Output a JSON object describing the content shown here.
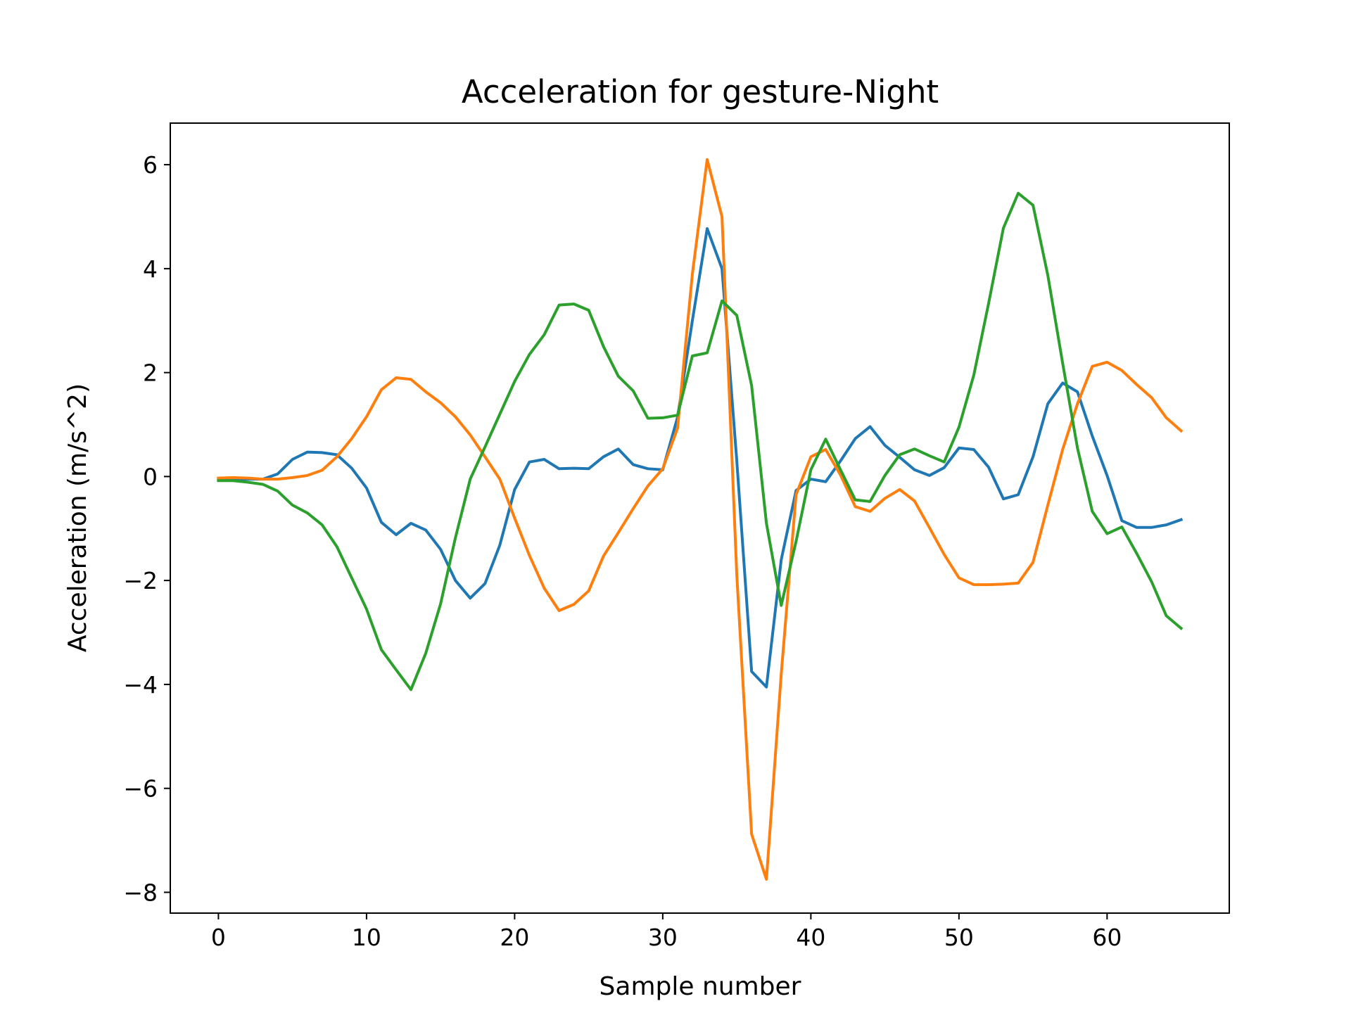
{
  "chart_data": {
    "type": "line",
    "title": "Acceleration for gesture-Night",
    "xlabel": "Sample number",
    "ylabel": "Acceleration (m/s^2)",
    "xlim": [
      -3.25,
      68.25
    ],
    "ylim": [
      -8.4,
      6.8
    ],
    "xticks": [
      0,
      10,
      20,
      30,
      40,
      50,
      60
    ],
    "xtick_labels": [
      "0",
      "10",
      "20",
      "30",
      "40",
      "50",
      "60"
    ],
    "yticks": [
      6,
      4,
      2,
      0,
      -2,
      -4,
      -6,
      -8
    ],
    "ytick_labels": [
      "6",
      "4",
      "2",
      "0",
      "−2",
      "−4",
      "−6",
      "−8"
    ],
    "grid": false,
    "legend": "none",
    "x": [
      0,
      1,
      2,
      3,
      4,
      5,
      6,
      7,
      8,
      9,
      10,
      11,
      12,
      13,
      14,
      15,
      16,
      17,
      18,
      19,
      20,
      21,
      22,
      23,
      24,
      25,
      26,
      27,
      28,
      29,
      30,
      31,
      32,
      33,
      34,
      35,
      36,
      37,
      38,
      39,
      40,
      41,
      42,
      43,
      44,
      45,
      46,
      47,
      48,
      49,
      50,
      51,
      52,
      53,
      54,
      55,
      56,
      57,
      58,
      59,
      60,
      61,
      62,
      63,
      64,
      65
    ],
    "series": [
      {
        "color": "#1f77b4",
        "values": [
          -0.05,
          -0.05,
          -0.05,
          -0.05,
          0.05,
          0.33,
          0.47,
          0.46,
          0.42,
          0.16,
          -0.22,
          -0.88,
          -1.12,
          -0.9,
          -1.03,
          -1.4,
          -2.0,
          -2.34,
          -2.06,
          -1.32,
          -0.25,
          0.28,
          0.33,
          0.15,
          0.16,
          0.15,
          0.38,
          0.53,
          0.23,
          0.15,
          0.13,
          1.14,
          3.0,
          4.77,
          4.0,
          0.3,
          -3.75,
          -4.05,
          -1.6,
          -0.27,
          -0.05,
          -0.1,
          0.3,
          0.73,
          0.96,
          0.6,
          0.37,
          0.13,
          0.02,
          0.17,
          0.55,
          0.52,
          0.18,
          -0.43,
          -0.35,
          0.38,
          1.4,
          1.8,
          1.63,
          0.78,
          0.02,
          -0.85,
          -0.98,
          -0.98,
          -0.93,
          -0.83
        ]
      },
      {
        "color": "#ff7f0e",
        "values": [
          -0.03,
          -0.02,
          -0.03,
          -0.05,
          -0.05,
          -0.02,
          0.02,
          0.12,
          0.38,
          0.73,
          1.15,
          1.67,
          1.9,
          1.87,
          1.63,
          1.42,
          1.15,
          0.8,
          0.38,
          -0.05,
          -0.8,
          -1.52,
          -2.15,
          -2.58,
          -2.46,
          -2.2,
          -1.53,
          -1.08,
          -0.62,
          -0.18,
          0.15,
          0.93,
          3.9,
          6.1,
          5.0,
          -1.9,
          -6.88,
          -7.75,
          -3.8,
          -0.35,
          0.38,
          0.52,
          0.03,
          -0.58,
          -0.67,
          -0.42,
          -0.25,
          -0.47,
          -0.98,
          -1.5,
          -1.95,
          -2.08,
          -2.08,
          -2.07,
          -2.05,
          -1.65,
          -0.55,
          0.52,
          1.4,
          2.12,
          2.2,
          2.04,
          1.77,
          1.52,
          1.13,
          0.88
        ]
      },
      {
        "color": "#2ca02c",
        "values": [
          -0.08,
          -0.08,
          -0.11,
          -0.15,
          -0.28,
          -0.55,
          -0.7,
          -0.93,
          -1.35,
          -1.95,
          -2.55,
          -3.33,
          -3.72,
          -4.1,
          -3.4,
          -2.45,
          -1.18,
          -0.05,
          0.57,
          1.2,
          1.83,
          2.35,
          2.73,
          3.3,
          3.32,
          3.2,
          2.5,
          1.93,
          1.65,
          1.12,
          1.13,
          1.18,
          2.32,
          2.38,
          3.38,
          3.1,
          1.75,
          -0.9,
          -2.48,
          -1.25,
          0.13,
          0.72,
          0.13,
          -0.45,
          -0.48,
          0.02,
          0.42,
          0.53,
          0.4,
          0.28,
          0.95,
          1.95,
          3.33,
          4.78,
          5.45,
          5.22,
          3.87,
          2.18,
          0.55,
          -0.67,
          -1.1,
          -0.97,
          -1.48,
          -2.02,
          -2.68,
          -2.92
        ]
      }
    ]
  }
}
